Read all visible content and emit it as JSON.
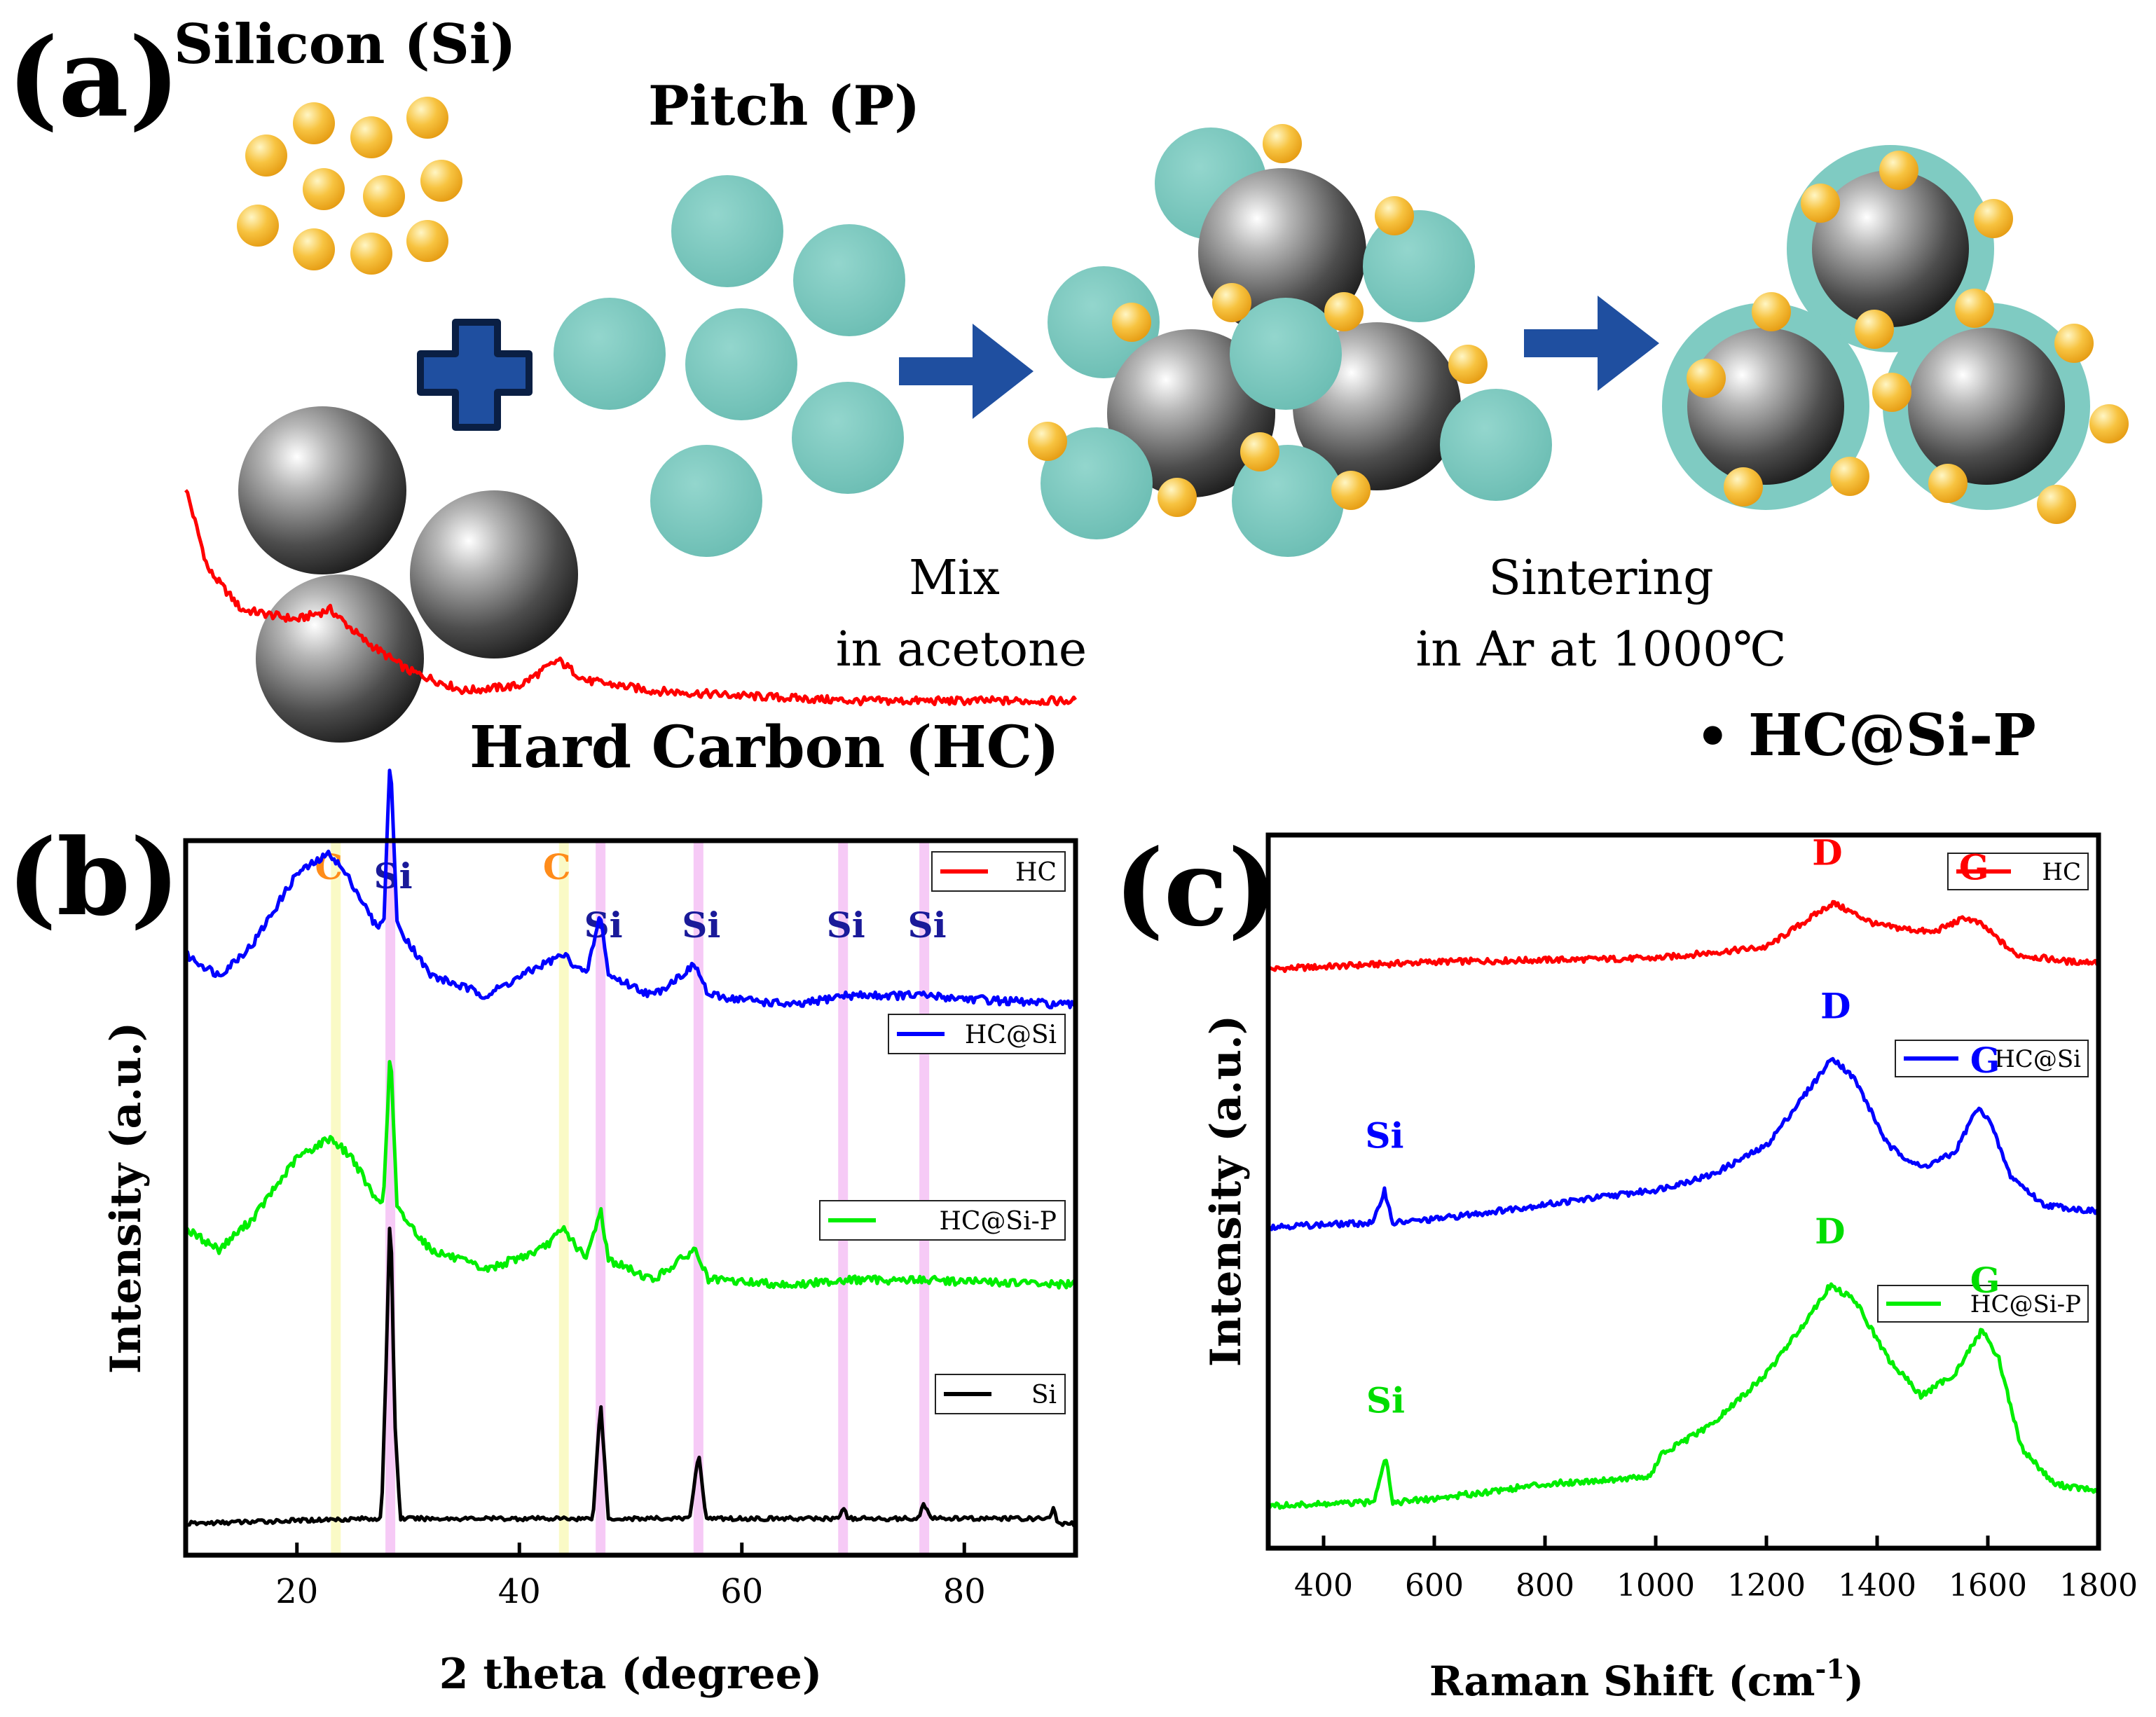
{
  "panel_a": {
    "label": "(a)",
    "silicon_label": "Silicon (Si)",
    "pitch_label": "Pitch (P)",
    "hard_carbon_label": "Hard Carbon (HC)",
    "step1_line1": "Mix",
    "step1_line2": "in acetone",
    "step2_line1": "Sintering",
    "step2_line2": "in Ar at 1000℃",
    "product_bullet": "•",
    "product_label": "HC@Si-P",
    "colors": {
      "silicon": "#f6b73c",
      "pitch": "#7fcbc2",
      "hard_carbon": "#4a4a4a",
      "arrow": "#1f4fa0"
    }
  },
  "chart_data": [
    {
      "panel": "(b)",
      "type": "line",
      "xlabel": "2 theta (degree)",
      "ylabel": "Intensity (a.u.)",
      "xlim": [
        10,
        90
      ],
      "x_ticks": [
        20,
        40,
        60,
        80
      ],
      "y_ticks_shown": false,
      "grid": false,
      "series": [
        {
          "name": "HC",
          "color": "#ff0000",
          "offset": 0.82,
          "points": [
            [
              10,
              0.2
            ],
            [
              12,
              0.12
            ],
            [
              15,
              0.08
            ],
            [
              20,
              0.07
            ],
            [
              23,
              0.08
            ],
            [
              26,
              0.05
            ],
            [
              30,
              0.02
            ],
            [
              35,
              0.0
            ],
            [
              40,
              0.005
            ],
            [
              43.5,
              0.03
            ],
            [
              46,
              0.01
            ],
            [
              52,
              0.0
            ],
            [
              60,
              -0.005
            ],
            [
              70,
              -0.01
            ],
            [
              80,
              -0.01
            ],
            [
              90,
              -0.01
            ]
          ]
        },
        {
          "name": "HC@Si",
          "color": "#0000ff",
          "offset": 0.52,
          "points": [
            [
              10,
              0.04
            ],
            [
              13,
              0.02
            ],
            [
              16,
              0.05
            ],
            [
              20,
              0.12
            ],
            [
              23,
              0.14
            ],
            [
              25,
              0.11
            ],
            [
              27,
              0.07
            ],
            [
              27.8,
              0.07
            ],
            [
              28.4,
              0.24
            ],
            [
              29,
              0.07
            ],
            [
              32,
              0.02
            ],
            [
              37,
              0.0
            ],
            [
              42,
              0.03
            ],
            [
              44,
              0.04
            ],
            [
              46,
              0.02
            ],
            [
              47.3,
              0.08
            ],
            [
              48,
              0.02
            ],
            [
              52,
              0.0
            ],
            [
              55.8,
              0.03
            ],
            [
              57,
              0.0
            ],
            [
              65,
              -0.01
            ],
            [
              69,
              0.0
            ],
            [
              76,
              0.0
            ],
            [
              90,
              -0.01
            ]
          ]
        },
        {
          "name": "HC@Si-P",
          "color": "#00ee00",
          "offset": 0.24,
          "points": [
            [
              10,
              0.05
            ],
            [
              13,
              0.03
            ],
            [
              16,
              0.06
            ],
            [
              20,
              0.12
            ],
            [
              23,
              0.14
            ],
            [
              25,
              0.12
            ],
            [
              27,
              0.08
            ],
            [
              27.8,
              0.08
            ],
            [
              28.4,
              0.23
            ],
            [
              29,
              0.07
            ],
            [
              32,
              0.03
            ],
            [
              37,
              0.01
            ],
            [
              42,
              0.03
            ],
            [
              44,
              0.05
            ],
            [
              46,
              0.02
            ],
            [
              47.3,
              0.07
            ],
            [
              48,
              0.02
            ],
            [
              52,
              0.0
            ],
            [
              55.8,
              0.03
            ],
            [
              57,
              0.0
            ],
            [
              65,
              -0.005
            ],
            [
              69,
              0.0
            ],
            [
              76,
              0.0
            ],
            [
              90,
              -0.005
            ]
          ]
        },
        {
          "name": "Si",
          "color": "#000000",
          "offset": 0.0,
          "points": [
            [
              10,
              0.0
            ],
            [
              26,
              0.005
            ],
            [
              27.6,
              0.005
            ],
            [
              28.0,
              0.15
            ],
            [
              28.4,
              0.32
            ],
            [
              28.8,
              0.1
            ],
            [
              29.3,
              0.005
            ],
            [
              46.6,
              0.005
            ],
            [
              47.3,
              0.12
            ],
            [
              48.0,
              0.005
            ],
            [
              55.3,
              0.005
            ],
            [
              56.1,
              0.07
            ],
            [
              56.8,
              0.005
            ],
            [
              68.6,
              0.005
            ],
            [
              69.1,
              0.015
            ],
            [
              69.6,
              0.005
            ],
            [
              75.8,
              0.005
            ],
            [
              76.4,
              0.02
            ],
            [
              77.0,
              0.005
            ],
            [
              87.6,
              0.005
            ],
            [
              88.0,
              0.015
            ],
            [
              88.4,
              0.0
            ],
            [
              90,
              0.0
            ]
          ]
        }
      ],
      "reference_lines": [
        {
          "x": 23.5,
          "kind": "C",
          "label": "C"
        },
        {
          "x": 28.4,
          "kind": "Si",
          "label": "Si"
        },
        {
          "x": 44.0,
          "kind": "C",
          "label": "C"
        },
        {
          "x": 47.3,
          "kind": "Si",
          "label": "Si"
        },
        {
          "x": 56.1,
          "kind": "Si",
          "label": "Si"
        },
        {
          "x": 69.1,
          "kind": "Si",
          "label": "Si"
        },
        {
          "x": 76.4,
          "kind": "Si",
          "label": "Si"
        }
      ],
      "reference_colors": {
        "C": "#fafac0",
        "Si": "#f5c4f5",
        "C_text": "#ff8c1a",
        "Si_text": "#1a1a99"
      }
    },
    {
      "panel": "(c)",
      "type": "line",
      "xlabel": "Raman Shift (cm",
      "xlabel_sup": "-1",
      "xlabel_end": ")",
      "ylabel": "Intensity (a.u.)",
      "xlim": [
        300,
        1800
      ],
      "x_ticks": [
        400,
        600,
        800,
        1000,
        1200,
        1400,
        1600,
        1800
      ],
      "y_ticks_shown": false,
      "grid": false,
      "series": [
        {
          "name": "HC",
          "color": "#ff0000",
          "offset": 0.73,
          "points": [
            [
              300,
              0.0
            ],
            [
              600,
              0.01
            ],
            [
              1000,
              0.015
            ],
            [
              1200,
              0.03
            ],
            [
              1260,
              0.06
            ],
            [
              1320,
              0.09
            ],
            [
              1400,
              0.06
            ],
            [
              1500,
              0.05
            ],
            [
              1560,
              0.07
            ],
            [
              1590,
              0.06
            ],
            [
              1650,
              0.02
            ],
            [
              1750,
              0.01
            ],
            [
              1800,
              0.01
            ]
          ]
        },
        {
          "name": "HC@Si",
          "color": "#0000ff",
          "offset": 0.38,
          "points": [
            [
              300,
              0.0
            ],
            [
              490,
              0.005
            ],
            [
              510,
              0.05
            ],
            [
              525,
              0.005
            ],
            [
              600,
              0.01
            ],
            [
              800,
              0.03
            ],
            [
              1000,
              0.05
            ],
            [
              1100,
              0.07
            ],
            [
              1200,
              0.11
            ],
            [
              1260,
              0.17
            ],
            [
              1320,
              0.23
            ],
            [
              1360,
              0.2
            ],
            [
              1420,
              0.11
            ],
            [
              1480,
              0.08
            ],
            [
              1540,
              0.1
            ],
            [
              1580,
              0.16
            ],
            [
              1600,
              0.15
            ],
            [
              1640,
              0.07
            ],
            [
              1700,
              0.03
            ],
            [
              1800,
              0.02
            ]
          ]
        },
        {
          "name": "HC@Si-P",
          "color": "#00ee00",
          "offset": 0.0,
          "points": [
            [
              300,
              0.0
            ],
            [
              490,
              0.005
            ],
            [
              512,
              0.07
            ],
            [
              525,
              0.005
            ],
            [
              600,
              0.01
            ],
            [
              800,
              0.03
            ],
            [
              990,
              0.04
            ],
            [
              1010,
              0.07
            ],
            [
              1100,
              0.11
            ],
            [
              1200,
              0.18
            ],
            [
              1260,
              0.24
            ],
            [
              1315,
              0.3
            ],
            [
              1360,
              0.28
            ],
            [
              1420,
              0.2
            ],
            [
              1480,
              0.15
            ],
            [
              1540,
              0.18
            ],
            [
              1590,
              0.24
            ],
            [
              1620,
              0.2
            ],
            [
              1660,
              0.08
            ],
            [
              1720,
              0.03
            ],
            [
              1800,
              0.02
            ]
          ]
        }
      ],
      "peak_labels": [
        {
          "series": "HC",
          "text": "D",
          "x": 1310,
          "color": "#ff0000"
        },
        {
          "series": "HC",
          "text": "G",
          "x": 1575,
          "color": "#ff0000"
        },
        {
          "series": "HC@Si",
          "text": "Si",
          "x": 510,
          "color": "#0000ff"
        },
        {
          "series": "HC@Si",
          "text": "D",
          "x": 1325,
          "color": "#0000ff"
        },
        {
          "series": "HC@Si",
          "text": "G",
          "x": 1595,
          "color": "#0000ff"
        },
        {
          "series": "HC@Si-P",
          "text": "Si",
          "x": 512,
          "color": "#00dd00"
        },
        {
          "series": "HC@Si-P",
          "text": "D",
          "x": 1315,
          "color": "#00dd00"
        },
        {
          "series": "HC@Si-P",
          "text": "G",
          "x": 1595,
          "color": "#00dd00"
        }
      ]
    }
  ]
}
